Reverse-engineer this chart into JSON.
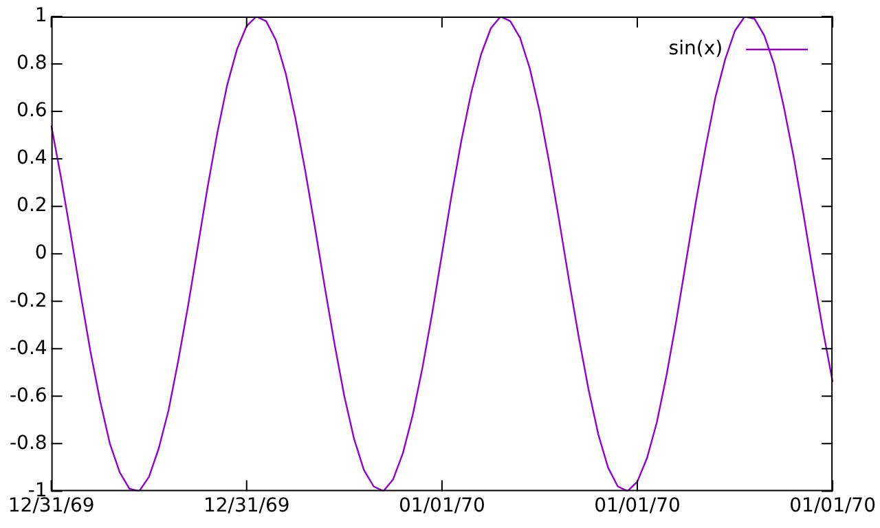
{
  "chart_data": {
    "type": "line",
    "categories": [
      "12/31/69",
      null,
      null,
      null,
      null,
      null,
      null,
      null,
      null,
      null,
      null,
      null,
      null,
      null,
      null,
      null,
      null,
      null,
      null,
      null,
      "12/31/69",
      null,
      null,
      null,
      null,
      null,
      null,
      null,
      null,
      null,
      null,
      null,
      null,
      null,
      null,
      null,
      null,
      null,
      null,
      null,
      "01/01/70",
      null,
      null,
      null,
      null,
      null,
      null,
      null,
      null,
      null,
      null,
      null,
      null,
      null,
      null,
      null,
      null,
      null,
      null,
      null,
      "01/01/70",
      null,
      null,
      null,
      null,
      null,
      null,
      null,
      null,
      null,
      null,
      null,
      null,
      null,
      null,
      null,
      null,
      null,
      null,
      null,
      "01/01/70"
    ],
    "series": [
      {
        "name": "sin(x)",
        "color": "#9400d3",
        "values": [
          0.54,
          0.32,
          0.08,
          -0.17,
          -0.41,
          -0.62,
          -0.8,
          -0.92,
          -0.99,
          -1,
          -0.94,
          -0.82,
          -0.66,
          -0.45,
          -0.22,
          0.03,
          0.28,
          0.51,
          0.71,
          0.86,
          0.96,
          1,
          0.98,
          0.9,
          0.76,
          0.57,
          0.35,
          0.11,
          -0.14,
          -0.38,
          -0.6,
          -0.78,
          -0.91,
          -0.98,
          -1,
          -0.95,
          -0.84,
          -0.68,
          -0.48,
          -0.25,
          0,
          0.25,
          0.48,
          0.68,
          0.84,
          0.95,
          1,
          0.98,
          0.91,
          0.78,
          0.6,
          0.38,
          0.14,
          -0.11,
          -0.35,
          -0.57,
          -0.76,
          -0.9,
          -0.98,
          -1,
          -0.96,
          -0.86,
          -0.71,
          -0.51,
          -0.28,
          -0.03,
          0.22,
          0.45,
          0.66,
          0.82,
          0.94,
          1,
          0.99,
          0.92,
          0.8,
          0.62,
          0.41,
          0.17,
          -0.08,
          -0.32,
          -0.54
        ]
      }
    ],
    "ylim": [
      -1,
      1
    ],
    "yticks": [
      -1,
      -0.8,
      -0.6,
      -0.4,
      -0.2,
      0,
      0.2,
      0.4,
      0.6,
      0.8,
      1
    ],
    "grid": false,
    "legend": "top right",
    "marker": "none",
    "line_style": "solid"
  }
}
